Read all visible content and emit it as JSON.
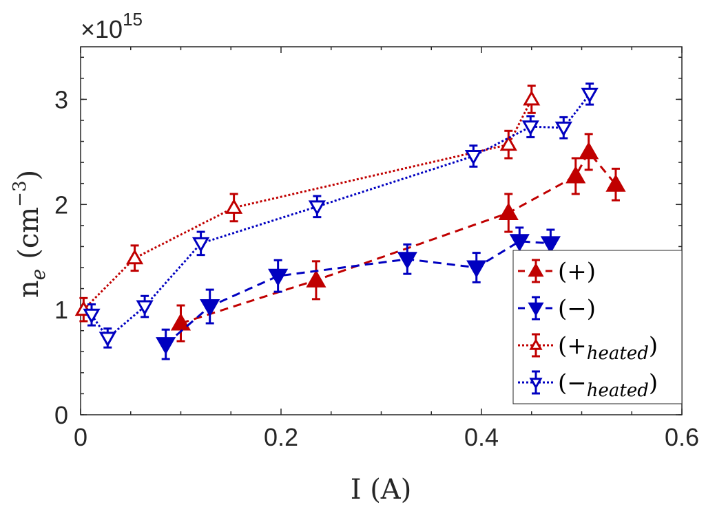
{
  "chart_data": {
    "type": "line",
    "title": "",
    "xlabel": "I (A)",
    "ylabel": "n",
    "ylabel_sub": "e",
    "ylabel_units": "(cm",
    "ylabel_exp": "−3",
    "ylabel_close": ")",
    "y_multiplier": "×10",
    "y_multiplier_exp": "15",
    "xlim": [
      0,
      0.6
    ],
    "ylim": [
      0,
      3.5
    ],
    "xticks": [
      "0",
      "0.2",
      "0.4",
      "0.6"
    ],
    "xtick_values": [
      0,
      0.2,
      0.4,
      0.6
    ],
    "yticks": [
      "0",
      "1",
      "2",
      "3"
    ],
    "ytick_values": [
      0,
      1,
      2,
      3
    ],
    "grid": false,
    "legend_placement": "bottom-right",
    "series": [
      {
        "name": "(+)",
        "legend_main": "(+",
        "legend_sub": "",
        "legend_close": ")",
        "color": "#c00000",
        "marker": "triangle-up",
        "filled": true,
        "line": "dashed",
        "x": [
          0.1,
          0.235,
          0.427,
          0.494,
          0.507,
          0.534
        ],
        "y": [
          0.87,
          1.28,
          1.92,
          2.27,
          2.5,
          2.19
        ],
        "err": [
          0.17,
          0.18,
          0.18,
          0.17,
          0.17,
          0.15
        ]
      },
      {
        "name": "(−)",
        "legend_main": "(−",
        "legend_sub": "",
        "legend_close": ")",
        "color": "#0000c0",
        "marker": "triangle-down",
        "filled": true,
        "line": "dashed",
        "x": [
          0.085,
          0.129,
          0.197,
          0.326,
          0.395,
          0.438,
          0.469
        ],
        "y": [
          0.67,
          1.03,
          1.32,
          1.48,
          1.4,
          1.65,
          1.63
        ],
        "err": [
          0.14,
          0.16,
          0.15,
          0.14,
          0.14,
          0.13,
          0.13
        ]
      },
      {
        "name": "(+heated)",
        "legend_main": "(+",
        "legend_sub": "heated",
        "legend_close": ")",
        "color": "#c00000",
        "marker": "triangle-up",
        "filled": false,
        "line": "dotted",
        "x": [
          0.003,
          0.054,
          0.153,
          0.427,
          0.45
        ],
        "y": [
          1.0,
          1.49,
          1.97,
          2.57,
          3.0
        ],
        "err": [
          0.11,
          0.12,
          0.13,
          0.13,
          0.13
        ]
      },
      {
        "name": "(−heated)",
        "legend_main": "(−",
        "legend_sub": "heated",
        "legend_close": ")",
        "color": "#0000c0",
        "marker": "triangle-down",
        "filled": false,
        "line": "dotted",
        "x": [
          0.011,
          0.027,
          0.064,
          0.12,
          0.236,
          0.392,
          0.449,
          0.482,
          0.508
        ],
        "y": [
          0.95,
          0.73,
          1.03,
          1.63,
          1.98,
          2.46,
          2.74,
          2.73,
          3.05
        ],
        "err": [
          0.1,
          0.09,
          0.1,
          0.11,
          0.1,
          0.1,
          0.1,
          0.1,
          0.1
        ]
      }
    ]
  }
}
